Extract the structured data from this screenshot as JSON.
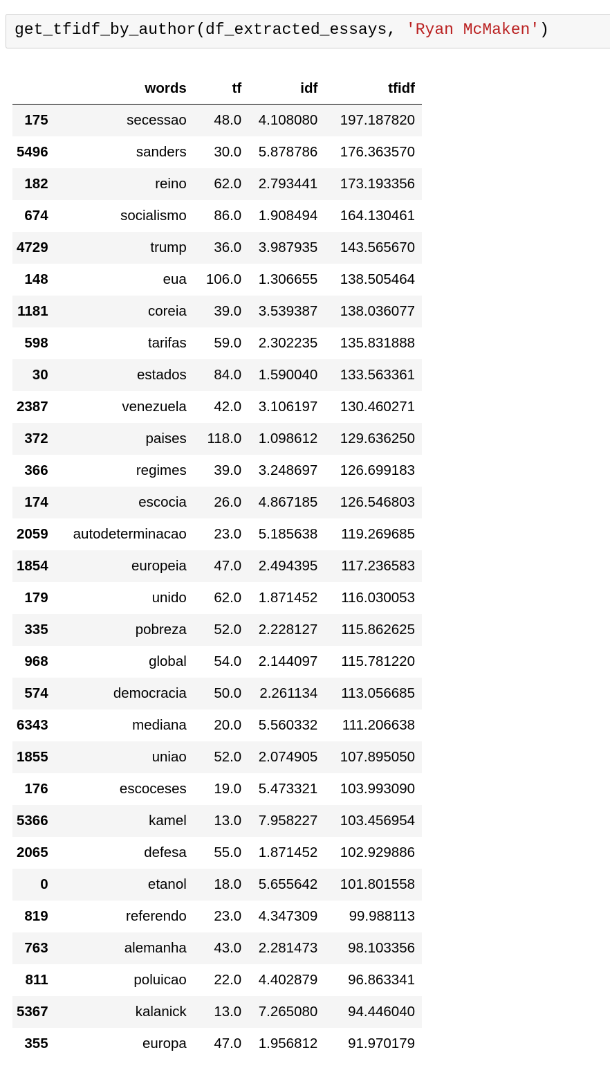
{
  "cell": {
    "code_prefix": "get_tfidf_by_author(df_extracted_essays, ",
    "code_string": "'Ryan McMaken'",
    "code_suffix": ")"
  },
  "table": {
    "columns": [
      "",
      "words",
      "tf",
      "idf",
      "tfidf"
    ],
    "rows": [
      {
        "index": "175",
        "words": "secessao",
        "tf": "48.0",
        "idf": "4.108080",
        "tfidf": "197.187820"
      },
      {
        "index": "5496",
        "words": "sanders",
        "tf": "30.0",
        "idf": "5.878786",
        "tfidf": "176.363570"
      },
      {
        "index": "182",
        "words": "reino",
        "tf": "62.0",
        "idf": "2.793441",
        "tfidf": "173.193356"
      },
      {
        "index": "674",
        "words": "socialismo",
        "tf": "86.0",
        "idf": "1.908494",
        "tfidf": "164.130461"
      },
      {
        "index": "4729",
        "words": "trump",
        "tf": "36.0",
        "idf": "3.987935",
        "tfidf": "143.565670"
      },
      {
        "index": "148",
        "words": "eua",
        "tf": "106.0",
        "idf": "1.306655",
        "tfidf": "138.505464"
      },
      {
        "index": "1181",
        "words": "coreia",
        "tf": "39.0",
        "idf": "3.539387",
        "tfidf": "138.036077"
      },
      {
        "index": "598",
        "words": "tarifas",
        "tf": "59.0",
        "idf": "2.302235",
        "tfidf": "135.831888"
      },
      {
        "index": "30",
        "words": "estados",
        "tf": "84.0",
        "idf": "1.590040",
        "tfidf": "133.563361"
      },
      {
        "index": "2387",
        "words": "venezuela",
        "tf": "42.0",
        "idf": "3.106197",
        "tfidf": "130.460271"
      },
      {
        "index": "372",
        "words": "paises",
        "tf": "118.0",
        "idf": "1.098612",
        "tfidf": "129.636250"
      },
      {
        "index": "366",
        "words": "regimes",
        "tf": "39.0",
        "idf": "3.248697",
        "tfidf": "126.699183"
      },
      {
        "index": "174",
        "words": "escocia",
        "tf": "26.0",
        "idf": "4.867185",
        "tfidf": "126.546803"
      },
      {
        "index": "2059",
        "words": "autodeterminacao",
        "tf": "23.0",
        "idf": "5.185638",
        "tfidf": "119.269685"
      },
      {
        "index": "1854",
        "words": "europeia",
        "tf": "47.0",
        "idf": "2.494395",
        "tfidf": "117.236583"
      },
      {
        "index": "179",
        "words": "unido",
        "tf": "62.0",
        "idf": "1.871452",
        "tfidf": "116.030053"
      },
      {
        "index": "335",
        "words": "pobreza",
        "tf": "52.0",
        "idf": "2.228127",
        "tfidf": "115.862625"
      },
      {
        "index": "968",
        "words": "global",
        "tf": "54.0",
        "idf": "2.144097",
        "tfidf": "115.781220"
      },
      {
        "index": "574",
        "words": "democracia",
        "tf": "50.0",
        "idf": "2.261134",
        "tfidf": "113.056685"
      },
      {
        "index": "6343",
        "words": "mediana",
        "tf": "20.0",
        "idf": "5.560332",
        "tfidf": "111.206638"
      },
      {
        "index": "1855",
        "words": "uniao",
        "tf": "52.0",
        "idf": "2.074905",
        "tfidf": "107.895050"
      },
      {
        "index": "176",
        "words": "escoceses",
        "tf": "19.0",
        "idf": "5.473321",
        "tfidf": "103.993090"
      },
      {
        "index": "5366",
        "words": "kamel",
        "tf": "13.0",
        "idf": "7.958227",
        "tfidf": "103.456954"
      },
      {
        "index": "2065",
        "words": "defesa",
        "tf": "55.0",
        "idf": "1.871452",
        "tfidf": "102.929886"
      },
      {
        "index": "0",
        "words": "etanol",
        "tf": "18.0",
        "idf": "5.655642",
        "tfidf": "101.801558"
      },
      {
        "index": "819",
        "words": "referendo",
        "tf": "23.0",
        "idf": "4.347309",
        "tfidf": "99.988113"
      },
      {
        "index": "763",
        "words": "alemanha",
        "tf": "43.0",
        "idf": "2.281473",
        "tfidf": "98.103356"
      },
      {
        "index": "811",
        "words": "poluicao",
        "tf": "22.0",
        "idf": "4.402879",
        "tfidf": "96.863341"
      },
      {
        "index": "5367",
        "words": "kalanick",
        "tf": "13.0",
        "idf": "7.265080",
        "tfidf": "94.446040"
      },
      {
        "index": "355",
        "words": "europa",
        "tf": "47.0",
        "idf": "1.956812",
        "tfidf": "91.970179"
      }
    ]
  }
}
